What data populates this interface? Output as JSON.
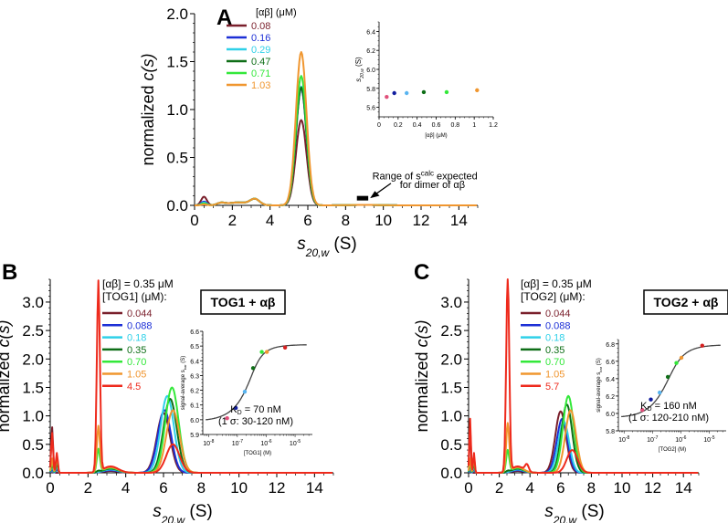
{
  "chart_data": [
    {
      "id": "A",
      "panel_label": "A",
      "type": "line",
      "title": "",
      "xlabel_main": "s",
      "xlabel_sub": "20,w",
      "xlabel_unit": "(S)",
      "ylabel_prefix": "normalized ",
      "ylabel_italic": "c(s)",
      "xlim": [
        0,
        15
      ],
      "ylim": [
        0,
        2.0
      ],
      "xticks": [
        0,
        2,
        4,
        6,
        8,
        10,
        12,
        14
      ],
      "yticks": [
        0.0,
        0.5,
        1.0,
        1.5,
        2.0
      ],
      "ytick_labels": [
        "0.0",
        "0.5",
        "1.0",
        "1.5",
        "2.0"
      ],
      "legend_title": "[αβ] (μM)",
      "legend_position": "top-left",
      "series": [
        {
          "name": "0.08",
          "color": "#7a1f2b",
          "peak": 0.89,
          "peak_x": 5.65,
          "lowmass": 0.09
        },
        {
          "name": "0.16",
          "color": "#1c2fd6",
          "peak": 1.22,
          "peak_x": 5.65,
          "lowmass": 0.04
        },
        {
          "name": "0.29",
          "color": "#2fd0e8",
          "peak": 1.24,
          "peak_x": 5.65,
          "lowmass": 0.03
        },
        {
          "name": "0.47",
          "color": "#0e6e17",
          "peak": 1.23,
          "peak_x": 5.65,
          "lowmass": 0.02
        },
        {
          "name": "0.71",
          "color": "#33e83a",
          "peak": 1.35,
          "peak_x": 5.65,
          "lowmass": 0.02
        },
        {
          "name": "1.03",
          "color": "#f0962f",
          "peak": 1.6,
          "peak_x": 5.65,
          "lowmass": 0.01
        }
      ],
      "annotation": {
        "text_line1_prefix": "Range of s",
        "text_line1_sup": "calc",
        "text_line1_suffix": " expected",
        "text_line2": "for dimer of αβ",
        "range_s": [
          8.6,
          9.2
        ]
      },
      "inset": {
        "type": "scatter",
        "xlabel": "[αβ] (μM)",
        "ylabel_main": "s",
        "ylabel_sub": "20,w",
        "ylabel_unit": "(S)",
        "xlim": [
          0,
          1.2
        ],
        "ylim": [
          5.5,
          6.5
        ],
        "xticks": [
          0,
          0.2,
          0.4,
          0.6,
          0.8,
          1,
          1.2
        ],
        "xtick_labels": [
          "0",
          "0.2",
          "0.4",
          "0.6",
          "0.8",
          "1",
          "1.2"
        ],
        "yticks": [
          5.6,
          5.8,
          6.0,
          6.2,
          6.4
        ],
        "ytick_labels": [
          "5.6",
          "5.8",
          "6.0",
          "6.2",
          "6.4"
        ],
        "points": [
          {
            "x": 0.08,
            "y": 5.71,
            "color": "#e0507a"
          },
          {
            "x": 0.16,
            "y": 5.75,
            "color": "#101c9e"
          },
          {
            "x": 0.29,
            "y": 5.75,
            "color": "#58b4f0"
          },
          {
            "x": 0.47,
            "y": 5.76,
            "color": "#0e6e17"
          },
          {
            "x": 0.71,
            "y": 5.76,
            "color": "#33e83a"
          },
          {
            "x": 1.03,
            "y": 5.78,
            "color": "#f0962f"
          }
        ]
      }
    },
    {
      "id": "B",
      "panel_label": "B",
      "type": "line",
      "title": "TOG1 + αβ",
      "xlabel_main": "s",
      "xlabel_sub": "20,w",
      "xlabel_unit": "(S)",
      "ylabel_prefix": "normalized ",
      "ylabel_italic": "c(s)",
      "xlim": [
        0,
        15
      ],
      "ylim": [
        0,
        3.4
      ],
      "xticks": [
        0,
        2,
        4,
        6,
        8,
        10,
        12,
        14
      ],
      "yticks": [
        0.0,
        0.5,
        1.0,
        1.5,
        2.0,
        2.5,
        3.0
      ],
      "ytick_labels": [
        "0.0",
        "0.5",
        "1.0",
        "1.5",
        "2.0",
        "2.5",
        "3.0"
      ],
      "legend_title_line1": "[αβ] = 0.35 μM",
      "legend_title_line2": "[TOG1] (μM):",
      "legend_position": "top-center",
      "series": [
        {
          "name": "0.044",
          "color": "#7a1f2b",
          "peak": 1.05,
          "peak_x": 6.0,
          "free": 0.0
        },
        {
          "name": "0.088",
          "color": "#1c2fd6",
          "peak": 1.1,
          "peak_x": 6.05,
          "free": 0.0
        },
        {
          "name": "0.18",
          "color": "#2fd0e8",
          "peak": 1.35,
          "peak_x": 6.2,
          "free": 0.0
        },
        {
          "name": "0.35",
          "color": "#0e6e17",
          "peak": 1.3,
          "peak_x": 6.35,
          "free": 0.02
        },
        {
          "name": "0.70",
          "color": "#33e83a",
          "peak": 1.5,
          "peak_x": 6.45,
          "free": 0.4
        },
        {
          "name": "1.05",
          "color": "#f0962f",
          "peak": 1.1,
          "peak_x": 6.5,
          "free": 0.8
        },
        {
          "name": "4.5",
          "color": "#ee2a1c",
          "peak": 0.5,
          "peak_x": 6.5,
          "free": 3.35
        }
      ],
      "inset": {
        "type": "scatter",
        "xlabel": "[TOG1] (M)",
        "ylabel_prefix": "signal-average s",
        "ylabel_sub": "bar",
        "ylabel_unit": " (S)",
        "xscale": "log",
        "xlim_log10": [
          -8.2,
          -4.4
        ],
        "ylim": [
          5.9,
          6.6
        ],
        "xticks_log10": [
          -8,
          -7,
          -6,
          -5
        ],
        "xtick_bases": [
          "10",
          "10",
          "10",
          "10"
        ],
        "xtick_exps": [
          "-8",
          "-7",
          "-6",
          "-5"
        ],
        "yticks": [
          5.9,
          6.0,
          6.1,
          6.2,
          6.3,
          6.4,
          6.5,
          6.6
        ],
        "ytick_labels": [
          "5.9",
          "6.0",
          "6.1",
          "6.2",
          "6.3",
          "6.4",
          "6.5",
          "6.6"
        ],
        "fit": {
          "KD": 7e-08,
          "s_min": 5.99,
          "s_max": 6.51,
          "total_ab": 3.5e-07
        },
        "kd_text_prefix": "K",
        "kd_text_sub": "D",
        "kd_text_suffix": " = 70 nM",
        "kd_ci_text": "(1 σ: 30-120 nM)",
        "points": [
          {
            "x": 4.4e-08,
            "y": 6.01,
            "color": "#e0507a"
          },
          {
            "x": 8.8e-08,
            "y": 6.08,
            "color": "#101c9e"
          },
          {
            "x": 1.8e-07,
            "y": 6.19,
            "color": "#58b4f0"
          },
          {
            "x": 3.5e-07,
            "y": 6.35,
            "color": "#0e6e17"
          },
          {
            "x": 7e-07,
            "y": 6.46,
            "color": "#33e83a"
          },
          {
            "x": 1.05e-06,
            "y": 6.46,
            "color": "#f0962f"
          },
          {
            "x": 4.5e-06,
            "y": 6.49,
            "color": "#d62020"
          }
        ]
      }
    },
    {
      "id": "C",
      "panel_label": "C",
      "type": "line",
      "title": "TOG2 + αβ",
      "xlabel_main": "s",
      "xlabel_sub": "20,w",
      "xlabel_unit": "(S)",
      "ylabel_prefix": "normalized ",
      "ylabel_italic": "c(s)",
      "xlim": [
        0,
        15
      ],
      "ylim": [
        0,
        3.4
      ],
      "xticks": [
        0,
        2,
        4,
        6,
        8,
        10,
        12,
        14
      ],
      "yticks": [
        0.0,
        0.5,
        1.0,
        1.5,
        2.0,
        2.5,
        3.0
      ],
      "ytick_labels": [
        "0.0",
        "0.5",
        "1.0",
        "1.5",
        "2.0",
        "2.5",
        "3.0"
      ],
      "legend_title_line1": "[αβ] = 0.35 μM",
      "legend_title_line2": "[TOG2] (μM):",
      "legend_position": "top-center",
      "series": [
        {
          "name": "0.044",
          "color": "#7a1f2b",
          "peak": 1.08,
          "peak_x": 6.0,
          "free": 0.0
        },
        {
          "name": "0.088",
          "color": "#1c2fd6",
          "peak": 0.95,
          "peak_x": 6.1,
          "free": 0.0
        },
        {
          "name": "0.18",
          "color": "#2fd0e8",
          "peak": 0.9,
          "peak_x": 6.2,
          "free": 0.0
        },
        {
          "name": "0.35",
          "color": "#0e6e17",
          "peak": 1.2,
          "peak_x": 6.4,
          "free": 0.02
        },
        {
          "name": "0.70",
          "color": "#33e83a",
          "peak": 1.35,
          "peak_x": 6.5,
          "free": 0.38
        },
        {
          "name": "1.05",
          "color": "#f0962f",
          "peak": 1.1,
          "peak_x": 6.65,
          "free": 0.85
        },
        {
          "name": "5.7",
          "color": "#ee2a1c",
          "peak": 0.4,
          "peak_x": 6.75,
          "free": 3.4
        }
      ],
      "inset": {
        "type": "scatter",
        "xlabel": "[TOG2] (M)",
        "ylabel_prefix": "signal-average s",
        "ylabel_sub": "bar",
        "ylabel_unit": " (S)",
        "xscale": "log",
        "xlim_log10": [
          -8.2,
          -4.4
        ],
        "ylim": [
          5.8,
          6.85
        ],
        "xticks_log10": [
          -8,
          -7,
          -6,
          -5
        ],
        "xtick_bases": [
          "10",
          "10",
          "10",
          "10"
        ],
        "xtick_exps": [
          "-8",
          "-7",
          "-6",
          "-5"
        ],
        "yticks": [
          5.8,
          6.0,
          6.2,
          6.4,
          6.6,
          6.8
        ],
        "ytick_labels": [
          "5.8",
          "6.0",
          "6.2",
          "6.4",
          "6.6",
          "6.8"
        ],
        "fit": {
          "KD": 1.6e-07,
          "s_min": 5.95,
          "s_max": 6.79,
          "total_ab": 3.5e-07
        },
        "kd_text_prefix": "K",
        "kd_text_sub": "D",
        "kd_text_suffix": " = 160 nM",
        "kd_ci_text": "(1 σ: 120-210 nM)",
        "points": [
          {
            "x": 4.4e-08,
            "y": 6.04,
            "color": "#e0507a"
          },
          {
            "x": 8.8e-08,
            "y": 6.16,
            "color": "#101c9e"
          },
          {
            "x": 1.8e-07,
            "y": 6.24,
            "color": "#58b4f0"
          },
          {
            "x": 3.5e-07,
            "y": 6.42,
            "color": "#0e6e17"
          },
          {
            "x": 7e-07,
            "y": 6.58,
            "color": "#33e83a"
          },
          {
            "x": 1.05e-06,
            "y": 6.64,
            "color": "#f0962f"
          },
          {
            "x": 5.7e-06,
            "y": 6.78,
            "color": "#d62020"
          }
        ]
      }
    }
  ]
}
